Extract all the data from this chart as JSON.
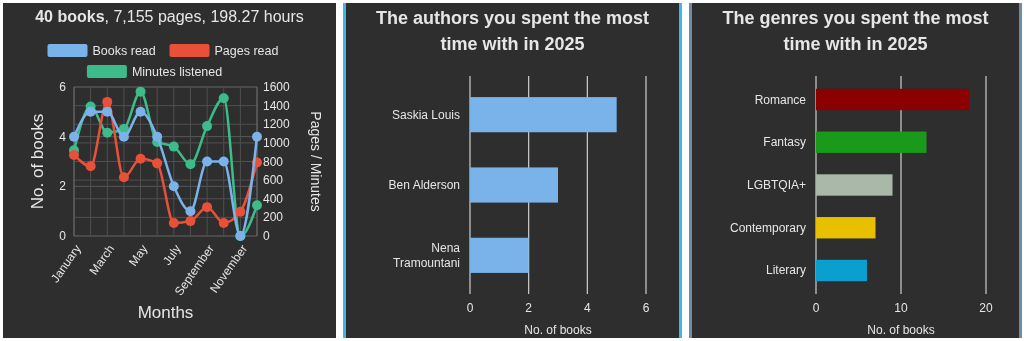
{
  "chart_data": [
    {
      "type": "line",
      "title": "40 books, 7,155 pages, 198.27 hours",
      "xlabel": "Months",
      "ylabel": "No. of books",
      "y2label": "Pages / Minutes",
      "categories": [
        "January",
        null,
        "March",
        null,
        "May",
        null,
        "July",
        null,
        "September",
        null,
        "November",
        null
      ],
      "series": [
        {
          "name": "Books read",
          "color": "#7ab3ea",
          "values": [
            4,
            5,
            5,
            4,
            5,
            4,
            2,
            1,
            3,
            3,
            0,
            4
          ]
        },
        {
          "name": "Pages read",
          "color": "#e8503a",
          "axis": "y2",
          "values": [
            870,
            750,
            1440,
            630,
            830,
            780,
            140,
            160,
            310,
            140,
            260,
            790
          ]
        },
        {
          "name": "Minutes listened",
          "color": "#3dbb8a",
          "axis": "y2",
          "values": [
            920,
            1390,
            1110,
            1150,
            1550,
            1010,
            960,
            770,
            1180,
            1480,
            0,
            330
          ]
        }
      ],
      "ylim": [
        0,
        6
      ],
      "yticks": [
        0,
        2,
        4,
        6
      ],
      "y2lim": [
        0,
        1600
      ],
      "y2ticks": [
        0,
        200,
        400,
        600,
        800,
        1000,
        1200,
        1400,
        1600
      ],
      "grid": true,
      "legend": "top",
      "marker": "circle"
    },
    {
      "type": "bar",
      "orientation": "horizontal",
      "title": "The authors you spent the most time with in 2025",
      "categories": [
        "Saskia Louis",
        "Ben Alderson",
        "Nena Tramountani"
      ],
      "values": [
        5,
        3,
        2
      ],
      "color": "#7ab3ea",
      "xlim": [
        0,
        6
      ],
      "xticks": [
        0,
        2,
        4,
        6
      ],
      "xlabel": "No. of books",
      "grid": "x"
    },
    {
      "type": "bar",
      "orientation": "horizontal",
      "title": "The genres you spent the most time with in 2025",
      "categories": [
        "Romance",
        "Fantasy",
        "LGBTQIA+",
        "Contemporary",
        "Literary"
      ],
      "values": [
        18,
        13,
        9,
        7,
        6
      ],
      "colors": [
        "#8b0000",
        "#1a9a1a",
        "#a9b8a9",
        "#e8c000",
        "#0b9fd0"
      ],
      "xlim": [
        0,
        20
      ],
      "xticks": [
        0,
        10,
        20
      ],
      "xlabel": "No. of books",
      "grid": "x"
    }
  ]
}
